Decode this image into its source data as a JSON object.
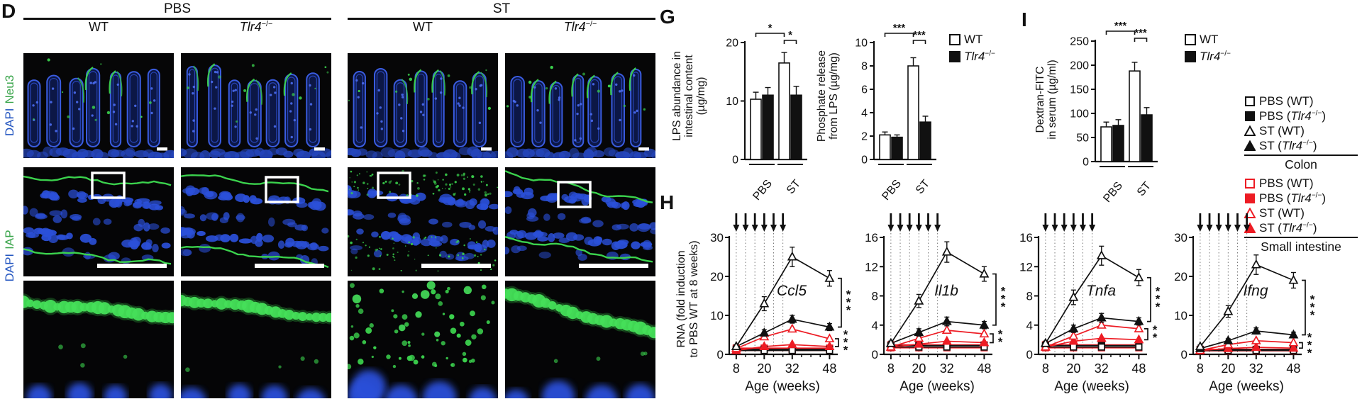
{
  "colors": {
    "dapi_blue": "#2b50d9",
    "marker_green": "#3bd24d",
    "small_intestine_red": "#ed1c24",
    "colon_black": "#111111"
  },
  "panel_d": {
    "label": "D",
    "group_headers": [
      "PBS",
      "ST"
    ],
    "column_labels": [
      {
        "text": "WT",
        "italic": false,
        "sup": ""
      },
      {
        "text": "Tlr4",
        "italic": true,
        "sup": "−/−"
      },
      {
        "text": "WT",
        "italic": false,
        "sup": ""
      },
      {
        "text": "Tlr4",
        "italic": true,
        "sup": "−/−"
      }
    ],
    "row_labels": [
      {
        "stain": "DAPI",
        "marker": "Neu3"
      },
      {
        "stain": "DAPI",
        "marker": "IAP"
      }
    ],
    "iap_pattern_by_column": [
      "continuous",
      "continuous",
      "speckled",
      "continuous"
    ]
  },
  "panel_g": {
    "label": "G",
    "legend": [
      {
        "fill": "open",
        "label": "WT",
        "italic": false,
        "sup": ""
      },
      {
        "fill": "solid",
        "label": "Tlr4",
        "italic": true,
        "sup": "−/−"
      }
    ]
  },
  "panel_i": {
    "label": "I",
    "legend": [
      {
        "fill": "open",
        "label": "WT",
        "italic": false,
        "sup": ""
      },
      {
        "fill": "solid",
        "label": "Tlr4",
        "italic": true,
        "sup": "−/−"
      }
    ]
  },
  "panel_h": {
    "label": "H",
    "ylabel_lines": [
      "RNA (fold induction",
      "to PBS WT at 8 weeks)"
    ]
  },
  "legend_right": {
    "groups": [
      {
        "title": "Colon",
        "color": "#111111",
        "items": [
          {
            "marker": "square",
            "fill": "open",
            "pre": "PBS (",
            "gene": "WT",
            "italic": false,
            "sup": "",
            "post": ")"
          },
          {
            "marker": "square",
            "fill": "solid",
            "pre": "PBS (",
            "gene": "Tlr4",
            "italic": true,
            "sup": "−/−",
            "post": ")"
          },
          {
            "marker": "triangle",
            "fill": "open",
            "pre": "ST (",
            "gene": "WT",
            "italic": false,
            "sup": "",
            "post": ")"
          },
          {
            "marker": "triangle",
            "fill": "solid",
            "pre": "ST (",
            "gene": "Tlr4",
            "italic": true,
            "sup": "−/−",
            "post": ")"
          }
        ]
      },
      {
        "title": "Small intestine",
        "color": "#ed1c24",
        "items": [
          {
            "marker": "square",
            "fill": "open",
            "pre": "PBS (",
            "gene": "WT",
            "italic": false,
            "sup": "",
            "post": ")"
          },
          {
            "marker": "square",
            "fill": "solid",
            "pre": "PBS (",
            "gene": "Tlr4",
            "italic": true,
            "sup": "−/−",
            "post": ")"
          },
          {
            "marker": "triangle",
            "fill": "open",
            "pre": "ST (",
            "gene": "WT",
            "italic": false,
            "sup": "",
            "post": ")"
          },
          {
            "marker": "triangle",
            "fill": "solid",
            "pre": "ST (",
            "gene": "Tlr4",
            "italic": true,
            "sup": "−/−",
            "post": ")"
          }
        ]
      }
    ]
  },
  "chart_data": [
    {
      "id": "lps_abundance",
      "type": "bar",
      "ylabel_lines": [
        "LPS abundance in",
        "intestinal content",
        "(µg/mg)"
      ],
      "ylim": [
        0,
        20
      ],
      "yticks": [
        0,
        10,
        20
      ],
      "groups": [
        "PBS",
        "ST"
      ],
      "series": [
        {
          "name": "WT",
          "fill": "open",
          "values": [
            10.3,
            16.5
          ],
          "errors": [
            1.2,
            1.8
          ]
        },
        {
          "name": "Tlr4−/−",
          "fill": "solid",
          "values": [
            11,
            11
          ],
          "errors": [
            1.3,
            1.5
          ]
        }
      ],
      "sig": [
        {
          "a": [
            0,
            0
          ],
          "b": [
            1,
            0
          ],
          "label": "*"
        },
        {
          "a": [
            1,
            0
          ],
          "b": [
            1,
            1
          ],
          "label": "*"
        }
      ]
    },
    {
      "id": "phosphate_release",
      "type": "bar",
      "ylabel_lines": [
        "Phosphate release",
        "from LPS (µg/mg)"
      ],
      "ylim": [
        0,
        10
      ],
      "yticks": [
        0,
        2,
        4,
        6,
        8,
        10
      ],
      "groups": [
        "PBS",
        "ST"
      ],
      "series": [
        {
          "name": "WT",
          "fill": "open",
          "values": [
            2.1,
            8
          ],
          "errors": [
            0.25,
            0.7
          ]
        },
        {
          "name": "Tlr4−/−",
          "fill": "solid",
          "values": [
            1.9,
            3.2
          ],
          "errors": [
            0.2,
            0.5
          ]
        }
      ],
      "sig": [
        {
          "a": [
            0,
            0
          ],
          "b": [
            1,
            0
          ],
          "label": "***"
        },
        {
          "a": [
            1,
            0
          ],
          "b": [
            1,
            1
          ],
          "label": "***"
        }
      ]
    },
    {
      "id": "dextran_fitc",
      "type": "bar",
      "ylabel_lines": [
        "Dextran-FITC",
        "in serum (µg/ml)"
      ],
      "ylim": [
        0,
        250
      ],
      "yticks": [
        0,
        50,
        100,
        150,
        200,
        250
      ],
      "groups": [
        "PBS",
        "ST"
      ],
      "series": [
        {
          "name": "WT",
          "fill": "open",
          "values": [
            72,
            188
          ],
          "errors": [
            10,
            18
          ]
        },
        {
          "name": "Tlr4−/−",
          "fill": "solid",
          "values": [
            75,
            97
          ],
          "errors": [
            12,
            15
          ]
        }
      ],
      "sig": [
        {
          "a": [
            0,
            0
          ],
          "b": [
            1,
            0
          ],
          "label": "***"
        },
        {
          "a": [
            1,
            0
          ],
          "b": [
            1,
            1
          ],
          "label": "***"
        }
      ]
    },
    {
      "id": "ccl5",
      "type": "line",
      "gene": "Ccl5",
      "xlabel": "Age (weeks)",
      "ylim": [
        0,
        30
      ],
      "yticks": [
        0,
        10,
        20,
        30
      ],
      "x": [
        8,
        20,
        32,
        48
      ],
      "arrow_weeks": [
        8,
        12,
        16,
        20,
        24,
        28
      ],
      "series": [
        {
          "key": "st_wt_colon",
          "label": "ST (WT) colon",
          "color": "black",
          "marker": "triangle",
          "fill": "open",
          "values": [
            2,
            13,
            25,
            19.5
          ],
          "errors": [
            0.5,
            1.8,
            2.5,
            2
          ]
        },
        {
          "key": "st_ko_colon",
          "label": "ST (Tlr4−/−) colon",
          "color": "black",
          "marker": "triangle",
          "fill": "solid",
          "values": [
            2,
            5.5,
            9,
            7
          ],
          "errors": [
            0.4,
            0.8,
            1,
            0.9
          ]
        },
        {
          "key": "st_wt_si",
          "label": "ST (WT) small intestine",
          "color": "red",
          "marker": "triangle",
          "fill": "open",
          "values": [
            1.5,
            4.5,
            6.5,
            4
          ]
        },
        {
          "key": "st_ko_si",
          "label": "ST (Tlr4−/−) small intestine",
          "color": "red",
          "marker": "triangle",
          "fill": "solid",
          "values": [
            1,
            2,
            2.5,
            2
          ]
        },
        {
          "key": "pbs_wt_colon",
          "label": "PBS (WT) colon",
          "color": "black",
          "marker": "square",
          "fill": "open",
          "values": [
            1,
            1,
            1,
            1
          ]
        },
        {
          "key": "pbs_ko_colon",
          "label": "PBS (Tlr4−/−) colon",
          "color": "black",
          "marker": "square",
          "fill": "solid",
          "values": [
            1.3,
            1.3,
            1.3,
            1.3
          ]
        },
        {
          "key": "pbs_wt_si",
          "label": "PBS (WT) small intestine",
          "color": "red",
          "marker": "square",
          "fill": "open",
          "values": [
            1,
            1,
            1,
            1
          ]
        },
        {
          "key": "pbs_ko_si",
          "label": "PBS (Tlr4−/−) small intestine",
          "color": "red",
          "marker": "square",
          "fill": "solid",
          "values": [
            1.6,
            1.6,
            1.6,
            1.6
          ]
        }
      ],
      "sig": [
        {
          "label": "***",
          "between": [
            "st_wt_colon",
            "st_ko_colon"
          ]
        },
        {
          "label": "***",
          "between": [
            "st_wt_si",
            "st_ko_si"
          ]
        }
      ]
    },
    {
      "id": "il1b",
      "type": "line",
      "gene": "Il1b",
      "xlabel": "Age (weeks)",
      "ylim": [
        0,
        16
      ],
      "yticks": [
        0,
        4,
        8,
        12,
        16
      ],
      "x": [
        8,
        20,
        32,
        48
      ],
      "arrow_weeks": [
        8,
        12,
        16,
        20,
        24,
        28
      ],
      "series": [
        {
          "key": "st_wt_colon",
          "label": "ST (WT) colon",
          "color": "black",
          "marker": "triangle",
          "fill": "open",
          "values": [
            1.5,
            7.3,
            14,
            11
          ],
          "errors": [
            0.3,
            0.9,
            1.4,
            1
          ]
        },
        {
          "key": "st_ko_colon",
          "label": "ST (Tlr4−/−) colon",
          "color": "black",
          "marker": "triangle",
          "fill": "solid",
          "values": [
            1.5,
            3,
            4.5,
            4
          ],
          "errors": [
            0.3,
            0.5,
            0.6,
            0.5
          ]
        },
        {
          "key": "st_wt_si",
          "label": "ST (WT) small intestine",
          "color": "red",
          "marker": "triangle",
          "fill": "open",
          "values": [
            1,
            2.2,
            3.3,
            2.8
          ]
        },
        {
          "key": "st_ko_si",
          "label": "ST (Tlr4−/−) small intestine",
          "color": "red",
          "marker": "triangle",
          "fill": "solid",
          "values": [
            1,
            1.4,
            1.8,
            1.6
          ]
        },
        {
          "key": "pbs_wt_colon",
          "label": "PBS (WT) colon",
          "color": "black",
          "marker": "square",
          "fill": "open",
          "values": [
            1,
            1,
            1,
            1
          ]
        },
        {
          "key": "pbs_ko_colon",
          "label": "PBS (Tlr4−/−) colon",
          "color": "black",
          "marker": "square",
          "fill": "solid",
          "values": [
            1.2,
            1.2,
            1.2,
            1.2
          ]
        },
        {
          "key": "pbs_wt_si",
          "label": "PBS (WT) small intestine",
          "color": "red",
          "marker": "square",
          "fill": "open",
          "values": [
            0.9,
            0.9,
            0.9,
            0.9
          ]
        },
        {
          "key": "pbs_ko_si",
          "label": "PBS (Tlr4−/−) small intestine",
          "color": "red",
          "marker": "square",
          "fill": "solid",
          "values": [
            1.3,
            1.3,
            1.3,
            1.3
          ]
        }
      ],
      "sig": [
        {
          "label": "***",
          "between": [
            "st_wt_colon",
            "st_ko_colon"
          ]
        },
        {
          "label": "**",
          "between": [
            "st_wt_si",
            "st_ko_si"
          ]
        }
      ]
    },
    {
      "id": "tnfa",
      "type": "line",
      "gene": "Tnfa",
      "xlabel": "Age (weeks)",
      "ylim": [
        0,
        16
      ],
      "yticks": [
        0,
        4,
        8,
        12,
        16
      ],
      "x": [
        8,
        20,
        32,
        48
      ],
      "arrow_weeks": [
        8,
        12,
        16,
        20,
        24,
        28
      ],
      "series": [
        {
          "key": "st_wt_colon",
          "label": "ST (WT) colon",
          "color": "black",
          "marker": "triangle",
          "fill": "open",
          "values": [
            1.5,
            7.8,
            13.5,
            10.5
          ],
          "errors": [
            0.3,
            1,
            1.3,
            1.1
          ]
        },
        {
          "key": "st_ko_colon",
          "label": "ST (Tlr4−/−) colon",
          "color": "black",
          "marker": "triangle",
          "fill": "solid",
          "values": [
            1.5,
            3.5,
            5,
            4.5
          ],
          "errors": [
            0.3,
            0.5,
            0.6,
            0.5
          ]
        },
        {
          "key": "st_wt_si",
          "label": "ST (WT) small intestine",
          "color": "red",
          "marker": "triangle",
          "fill": "open",
          "values": [
            1,
            2.5,
            4,
            3.5
          ]
        },
        {
          "key": "st_ko_si",
          "label": "ST (Tlr4−/−) small intestine",
          "color": "red",
          "marker": "triangle",
          "fill": "solid",
          "values": [
            1,
            1.8,
            2.2,
            2
          ]
        },
        {
          "key": "pbs_wt_colon",
          "label": "PBS (WT) colon",
          "color": "black",
          "marker": "square",
          "fill": "open",
          "values": [
            1,
            1,
            1,
            1
          ]
        },
        {
          "key": "pbs_ko_colon",
          "label": "PBS (Tlr4−/−) colon",
          "color": "black",
          "marker": "square",
          "fill": "solid",
          "values": [
            1.2,
            1.2,
            1.2,
            1.2
          ]
        },
        {
          "key": "pbs_wt_si",
          "label": "PBS (WT) small intestine",
          "color": "red",
          "marker": "square",
          "fill": "open",
          "values": [
            0.9,
            0.9,
            0.9,
            0.9
          ]
        },
        {
          "key": "pbs_ko_si",
          "label": "PBS (Tlr4−/−) small intestine",
          "color": "red",
          "marker": "square",
          "fill": "solid",
          "values": [
            1.3,
            1.3,
            1.3,
            1.3
          ]
        }
      ],
      "sig": [
        {
          "label": "***",
          "between": [
            "st_wt_colon",
            "st_ko_colon"
          ]
        },
        {
          "label": "**",
          "between": [
            "st_wt_si",
            "st_ko_si"
          ]
        }
      ]
    },
    {
      "id": "ifng",
      "type": "line",
      "gene": "Ifng",
      "xlabel": "Age (weeks)",
      "ylim": [
        0,
        30
      ],
      "yticks": [
        0,
        10,
        20,
        30
      ],
      "x": [
        8,
        20,
        32,
        48
      ],
      "arrow_weeks": [
        8,
        12,
        16,
        20,
        24,
        28
      ],
      "series": [
        {
          "key": "st_wt_colon",
          "label": "ST (WT) colon",
          "color": "black",
          "marker": "triangle",
          "fill": "open",
          "values": [
            2,
            11,
            23,
            19
          ],
          "errors": [
            0.4,
            1.5,
            2.5,
            2
          ]
        },
        {
          "key": "st_ko_colon",
          "label": "ST (Tlr4−/−) colon",
          "color": "black",
          "marker": "triangle",
          "fill": "solid",
          "values": [
            1.5,
            3.5,
            6,
            5
          ],
          "errors": [
            0.3,
            0.5,
            0.8,
            0.7
          ]
        },
        {
          "key": "st_wt_si",
          "label": "ST (WT) small intestine",
          "color": "red",
          "marker": "triangle",
          "fill": "open",
          "values": [
            1,
            2.5,
            3.5,
            3
          ]
        },
        {
          "key": "st_ko_si",
          "label": "ST (Tlr4−/−) small intestine",
          "color": "red",
          "marker": "triangle",
          "fill": "solid",
          "values": [
            1,
            1.5,
            1.8,
            1.6
          ]
        },
        {
          "key": "pbs_wt_colon",
          "label": "PBS (WT) colon",
          "color": "black",
          "marker": "square",
          "fill": "open",
          "values": [
            1,
            1,
            1,
            1
          ]
        },
        {
          "key": "pbs_ko_colon",
          "label": "PBS (Tlr4−/−) colon",
          "color": "black",
          "marker": "square",
          "fill": "solid",
          "values": [
            1.2,
            1.2,
            1.2,
            1.2
          ]
        },
        {
          "key": "pbs_wt_si",
          "label": "PBS (WT) small intestine",
          "color": "red",
          "marker": "square",
          "fill": "open",
          "values": [
            0.9,
            0.9,
            0.9,
            0.9
          ]
        },
        {
          "key": "pbs_ko_si",
          "label": "PBS (Tlr4−/−) small intestine",
          "color": "red",
          "marker": "square",
          "fill": "solid",
          "values": [
            1.3,
            1.3,
            1.3,
            1.3
          ]
        }
      ],
      "sig": [
        {
          "label": "***",
          "between": [
            "st_wt_colon",
            "st_ko_colon"
          ]
        },
        {
          "label": "***",
          "between": [
            "st_wt_si",
            "st_ko_si"
          ]
        }
      ]
    }
  ]
}
